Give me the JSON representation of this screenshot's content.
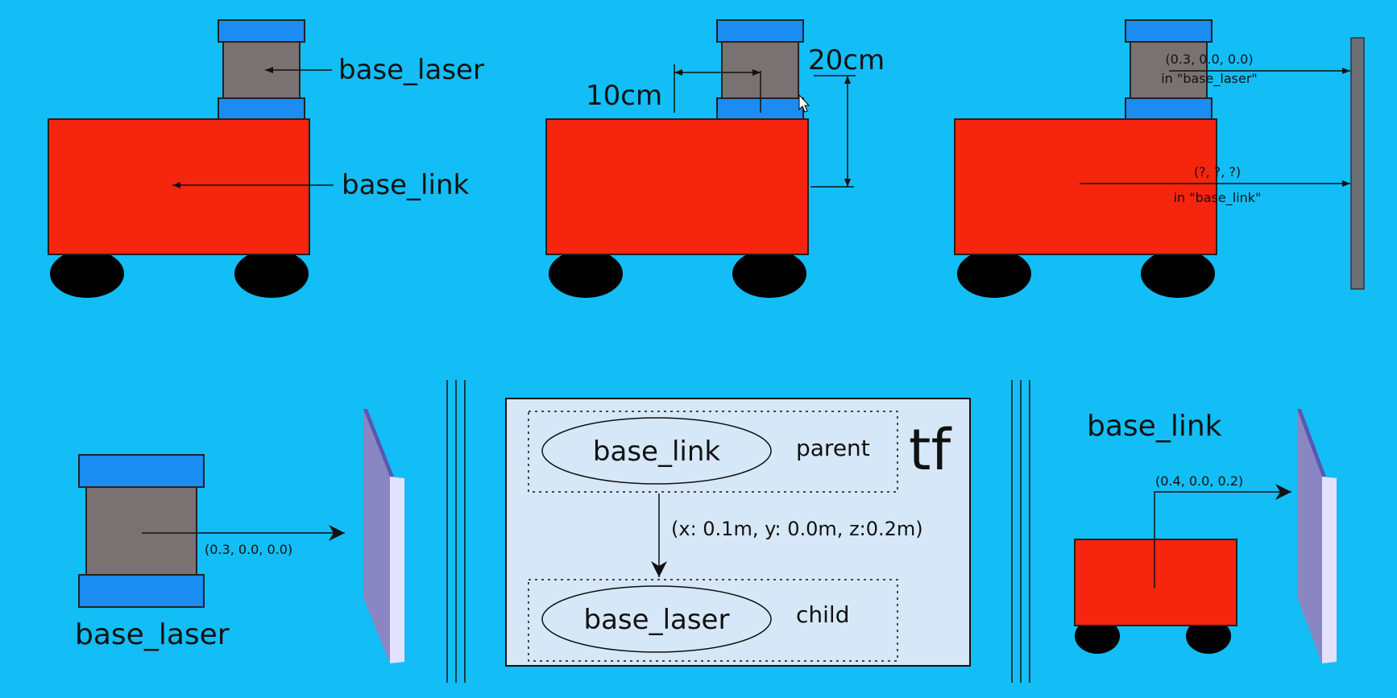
{
  "colors": {
    "background": "#12bef5",
    "robot_body": "#f5260d",
    "laser_cap": "#1a8cf2",
    "laser_body": "#7a7272",
    "wheel": "#000000",
    "wall": "#6e7073",
    "panel": "#d6e8f7",
    "mirror_face": "#8a86c4",
    "mirror_edge": "#5a57b0"
  },
  "panels": {
    "frames": {
      "laser_label": "base_laser",
      "link_label": "base_link"
    },
    "offsets": {
      "horizontal_label": "10cm",
      "vertical_label": "20cm"
    },
    "measurement": {
      "laser_coords": "(0.3, 0.0, 0.0)",
      "laser_frame": "in \"base_laser\"",
      "link_coords": "(?, ?, ?)",
      "link_frame": "in \"base_link\""
    },
    "laser_view": {
      "coords": "(0.3, 0.0, 0.0)",
      "label": "base_laser"
    },
    "tf_tree": {
      "title": "tf",
      "parent_node": "base_link",
      "parent_role": "parent",
      "child_node": "base_laser",
      "child_role": "child",
      "transform": "(x: 0.1m, y: 0.0m, z:0.2m)"
    },
    "link_view": {
      "label": "base_link",
      "coords": "(0.4, 0.0, 0.2)"
    }
  }
}
